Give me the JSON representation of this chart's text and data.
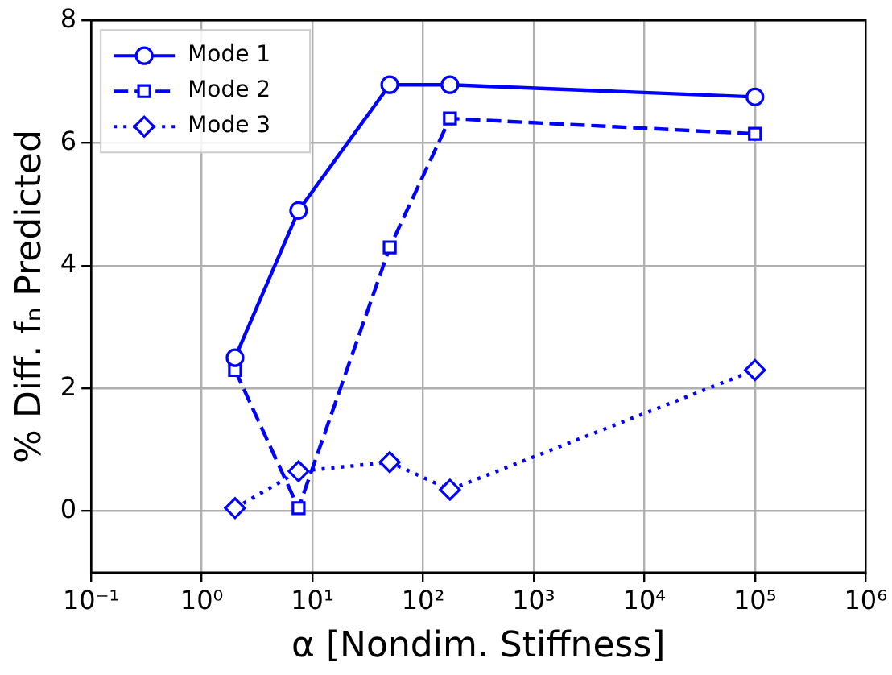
{
  "chart_data": {
    "type": "line",
    "xlabel": "α [Nondim. Stiffness]",
    "ylabel": "% Diff. fₙ Predicted",
    "x": [
      2,
      7.5,
      50,
      175,
      100000
    ],
    "series": [
      {
        "name": "Mode 1",
        "color": "#0000ff",
        "marker": "circle",
        "line_style": "solid",
        "values": [
          2.5,
          4.9,
          6.95,
          6.95,
          6.75
        ]
      },
      {
        "name": "Mode 2",
        "color": "#0000ff",
        "marker": "square",
        "line_style": "dashed",
        "values": [
          2.3,
          0.05,
          4.3,
          6.4,
          6.15
        ]
      },
      {
        "name": "Mode 3",
        "color": "#0000ff",
        "marker": "diamond",
        "line_style": "dotted",
        "values": [
          0.05,
          0.65,
          0.8,
          0.35,
          2.3
        ]
      }
    ],
    "log": "x",
    "xlim": [
      0.1,
      1000000
    ],
    "xticks": [
      {
        "value": 0.1,
        "label": "10⁻¹"
      },
      {
        "value": 1,
        "label": "10⁰"
      },
      {
        "value": 10,
        "label": "10¹"
      },
      {
        "value": 100,
        "label": "10²"
      },
      {
        "value": 1000,
        "label": "10³"
      },
      {
        "value": 10000,
        "label": "10⁴"
      },
      {
        "value": 100000,
        "label": "10⁵"
      },
      {
        "value": 1000000,
        "label": "10⁶"
      }
    ],
    "ylim": [
      -1,
      8
    ],
    "yticks": [
      0,
      2,
      4,
      6,
      8
    ],
    "grid": true,
    "legend": "top left"
  }
}
